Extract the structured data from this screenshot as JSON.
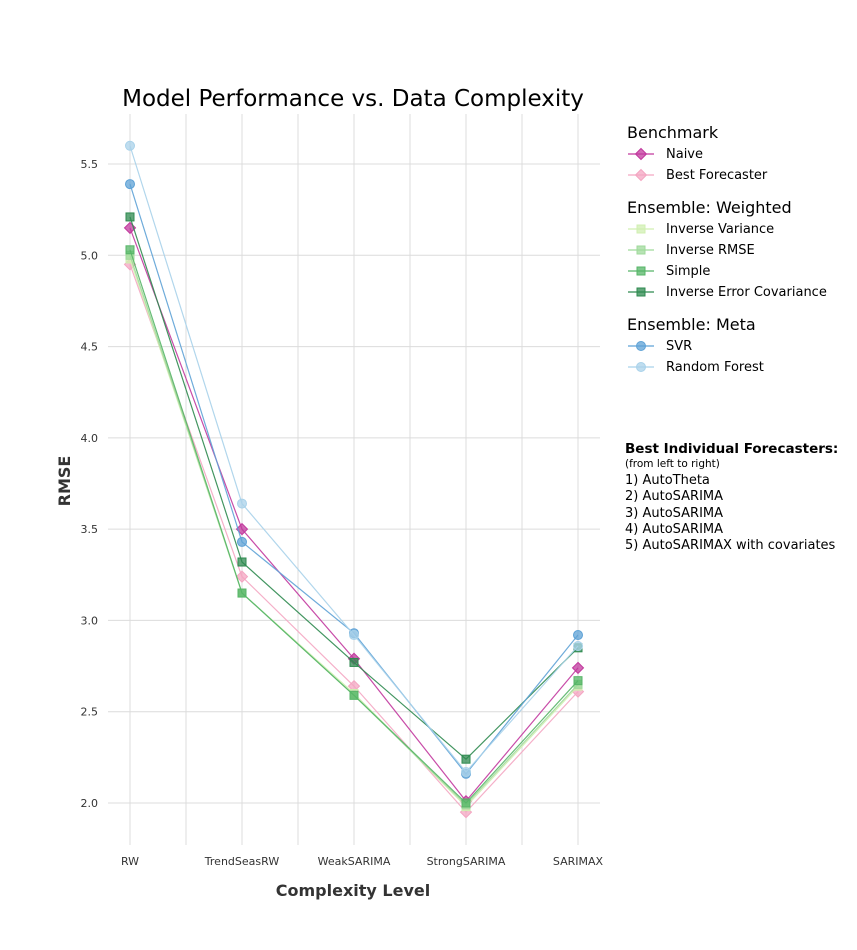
{
  "chart_data": {
    "type": "line",
    "title": "Model Performance vs. Data Complexity",
    "xlabel": "Complexity Level",
    "ylabel": "RMSE",
    "categories": [
      "RW",
      "TrendSeasRW",
      "WeakSARIMA",
      "StrongSARIMA",
      "SARIMAX"
    ],
    "ylim": [
      1.82,
      5.78
    ],
    "yticks": [
      2.0,
      2.5,
      3.0,
      3.5,
      4.0,
      4.5,
      5.0,
      5.5
    ],
    "grid": true,
    "legend_placement": "right",
    "groups": [
      {
        "title": "Benchmark",
        "series": [
          {
            "name": "Naive",
            "color": "#c2399e",
            "marker": "diamond",
            "values": [
              5.15,
              3.5,
              2.79,
              2.01,
              2.74
            ]
          },
          {
            "name": "Best Forecaster",
            "color": "#f4a6c2",
            "marker": "diamond",
            "values": [
              4.95,
              3.24,
              2.64,
              1.95,
              2.61
            ]
          }
        ]
      },
      {
        "title": "Ensemble: Weighted",
        "series": [
          {
            "name": "Inverse Variance",
            "color": "#d0efb1",
            "marker": "square",
            "values": [
              4.98,
              3.15,
              2.6,
              1.98,
              2.64
            ]
          },
          {
            "name": "Inverse RMSE",
            "color": "#9fd99b",
            "marker": "square",
            "values": [
              5.0,
              3.15,
              2.59,
              1.99,
              2.65
            ]
          },
          {
            "name": "Simple",
            "color": "#56b567",
            "marker": "square",
            "values": [
              5.03,
              3.15,
              2.59,
              2.0,
              2.67
            ]
          },
          {
            "name": "Inverse Error Covariance",
            "color": "#2e8a4f",
            "marker": "square",
            "values": [
              5.21,
              3.32,
              2.77,
              2.24,
              2.85
            ]
          }
        ]
      },
      {
        "title": "Ensemble: Meta",
        "series": [
          {
            "name": "SVR",
            "color": "#5ea2d6",
            "marker": "circle",
            "values": [
              5.39,
              3.43,
              2.93,
              2.16,
              2.92
            ]
          },
          {
            "name": "Random Forest",
            "color": "#a9d2ea",
            "marker": "circle",
            "values": [
              5.6,
              3.64,
              2.92,
              2.17,
              2.86
            ]
          }
        ]
      }
    ]
  },
  "notes": {
    "heading": "Best Individual Forecasters:",
    "subheading": "(from left to right)",
    "items": [
      "1) AutoTheta",
      "2) AutoSARIMA",
      "3) AutoSARIMA",
      "4) AutoSARIMA",
      "5) AutoSARIMAX with covariates"
    ]
  }
}
